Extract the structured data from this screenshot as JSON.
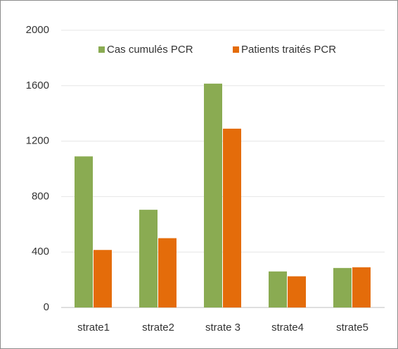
{
  "chart_data": {
    "type": "bar",
    "categories": [
      "strate1",
      "strate2",
      "strate 3",
      "strate4",
      "strate5"
    ],
    "series": [
      {
        "name": "Cas cumulés PCR",
        "color": "#8aab52",
        "values": [
          1090,
          705,
          1615,
          260,
          285
        ]
      },
      {
        "name": "Patients traités PCR",
        "color": "#e46c0a",
        "values": [
          415,
          500,
          1290,
          225,
          290
        ]
      }
    ],
    "ylim": [
      0,
      2000
    ],
    "yticks": [
      0,
      400,
      800,
      1200,
      1600,
      2000
    ],
    "grid": true,
    "legend": "top"
  }
}
